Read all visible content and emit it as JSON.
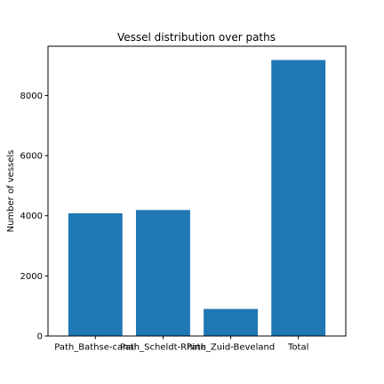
{
  "chart_data": {
    "type": "bar",
    "title": "Vessel distribution over paths",
    "xlabel": "",
    "ylabel": "Number of vessels",
    "categories": [
      "Path_Bathse-canal",
      "Path_Scheldt-Rhine",
      "Path_Zuid-Beveland",
      "Total"
    ],
    "values": [
      4080,
      4190,
      900,
      9180
    ],
    "ylim": [
      0,
      9639
    ],
    "yticks": [
      0,
      2000,
      4000,
      6000,
      8000
    ],
    "bar_color": "#1f77b4",
    "grid": false,
    "legend": "none"
  }
}
